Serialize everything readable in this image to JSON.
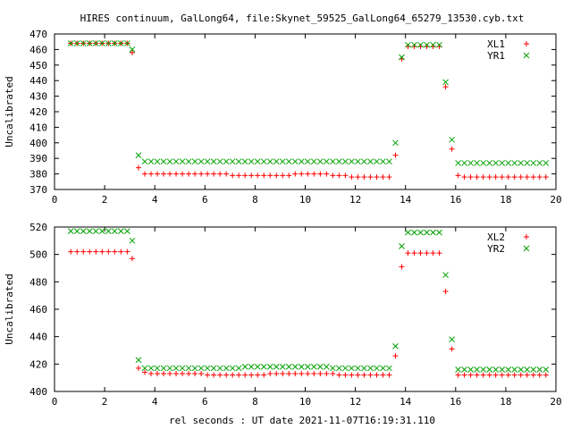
{
  "title": "HIRES continuum, GalLong64, file:Skynet_59525_GalLong64_65279_13530.cyb.txt",
  "xlabel": "rel seconds : UT date 2021-11-07T16:19:31.110",
  "chart_data": [
    {
      "type": "scatter",
      "ylabel": "Uncalibrated",
      "xlim": [
        0,
        20
      ],
      "ylim": [
        370,
        470
      ],
      "x_ticks": [
        0,
        2,
        4,
        6,
        8,
        10,
        12,
        14,
        16,
        18,
        20
      ],
      "y_ticks": [
        370,
        380,
        390,
        400,
        410,
        420,
        430,
        440,
        450,
        460,
        470
      ],
      "grid": false,
      "legend_position": "top-right",
      "x": [
        0.65,
        0.9,
        1.15,
        1.4,
        1.65,
        1.9,
        2.15,
        2.4,
        2.65,
        2.9,
        3.1,
        3.35,
        3.6,
        3.85,
        4.1,
        4.35,
        4.6,
        4.85,
        5.1,
        5.35,
        5.6,
        5.85,
        6.1,
        6.35,
        6.6,
        6.85,
        7.1,
        7.35,
        7.6,
        7.85,
        8.1,
        8.35,
        8.6,
        8.85,
        9.1,
        9.35,
        9.6,
        9.85,
        10.1,
        10.35,
        10.6,
        10.85,
        11.1,
        11.35,
        11.6,
        11.85,
        12.1,
        12.35,
        12.6,
        12.85,
        13.1,
        13.35,
        13.6,
        13.85,
        14.1,
        14.35,
        14.6,
        14.85,
        15.1,
        15.35,
        15.6,
        15.85,
        16.1,
        16.35,
        16.6,
        16.85,
        17.1,
        17.35,
        17.6,
        17.85,
        18.1,
        18.35,
        18.6,
        18.85,
        19.1,
        19.35,
        19.6
      ],
      "series": [
        {
          "name": "XL1",
          "color": "#ff0000",
          "marker": "plus",
          "values": [
            464,
            464,
            464,
            464,
            464,
            464,
            464,
            464,
            464,
            464,
            458,
            384,
            380,
            380,
            380,
            380,
            380,
            380,
            380,
            380,
            380,
            380,
            380,
            380,
            380,
            380,
            379,
            379,
            379,
            379,
            379,
            379,
            379,
            379,
            379,
            379,
            380,
            380,
            380,
            380,
            380,
            380,
            379,
            379,
            379,
            378,
            378,
            378,
            378,
            378,
            378,
            378,
            392,
            454,
            462,
            462,
            462,
            462,
            462,
            462,
            436,
            396,
            379,
            378,
            378,
            378,
            378,
            378,
            378,
            378,
            378,
            378,
            378,
            378,
            378,
            378,
            378
          ]
        },
        {
          "name": "YR1",
          "color": "#00a000",
          "marker": "cross",
          "values": [
            464,
            464,
            464,
            464,
            464,
            464,
            464,
            464,
            464,
            464,
            460,
            392,
            388,
            388,
            388,
            388,
            388,
            388,
            388,
            388,
            388,
            388,
            388,
            388,
            388,
            388,
            388,
            388,
            388,
            388,
            388,
            388,
            388,
            388,
            388,
            388,
            388,
            388,
            388,
            388,
            388,
            388,
            388,
            388,
            388,
            388,
            388,
            388,
            388,
            388,
            388,
            388,
            400,
            455,
            463,
            463,
            463,
            463,
            463,
            463,
            439,
            402,
            387,
            387,
            387,
            387,
            387,
            387,
            387,
            387,
            387,
            387,
            387,
            387,
            387,
            387,
            387
          ]
        }
      ]
    },
    {
      "type": "scatter",
      "ylabel": "Uncalibrated",
      "xlim": [
        0,
        20
      ],
      "ylim": [
        400,
        520
      ],
      "x_ticks": [
        0,
        2,
        4,
        6,
        8,
        10,
        12,
        14,
        16,
        18,
        20
      ],
      "y_ticks": [
        400,
        420,
        440,
        460,
        480,
        500,
        520
      ],
      "grid": false,
      "legend_position": "top-right",
      "x": [
        0.65,
        0.9,
        1.15,
        1.4,
        1.65,
        1.9,
        2.15,
        2.4,
        2.65,
        2.9,
        3.1,
        3.35,
        3.6,
        3.85,
        4.1,
        4.35,
        4.6,
        4.85,
        5.1,
        5.35,
        5.6,
        5.85,
        6.1,
        6.35,
        6.6,
        6.85,
        7.1,
        7.35,
        7.6,
        7.85,
        8.1,
        8.35,
        8.6,
        8.85,
        9.1,
        9.35,
        9.6,
        9.85,
        10.1,
        10.35,
        10.6,
        10.85,
        11.1,
        11.35,
        11.6,
        11.85,
        12.1,
        12.35,
        12.6,
        12.85,
        13.1,
        13.35,
        13.6,
        13.85,
        14.1,
        14.35,
        14.6,
        14.85,
        15.1,
        15.35,
        15.6,
        15.85,
        16.1,
        16.35,
        16.6,
        16.85,
        17.1,
        17.35,
        17.6,
        17.85,
        18.1,
        18.35,
        18.6,
        18.85,
        19.1,
        19.35,
        19.6
      ],
      "series": [
        {
          "name": "XL2",
          "color": "#ff0000",
          "marker": "plus",
          "values": [
            502,
            502,
            502,
            502,
            502,
            502,
            502,
            502,
            502,
            502,
            497,
            417,
            414,
            413,
            413,
            413,
            413,
            413,
            413,
            413,
            413,
            413,
            412,
            412,
            412,
            412,
            412,
            412,
            412,
            412,
            412,
            412,
            413,
            413,
            413,
            413,
            413,
            413,
            413,
            413,
            413,
            413,
            413,
            412,
            412,
            412,
            412,
            412,
            412,
            412,
            412,
            412,
            426,
            491,
            501,
            501,
            501,
            501,
            501,
            501,
            473,
            431,
            412,
            412,
            412,
            412,
            412,
            412,
            412,
            412,
            412,
            412,
            412,
            412,
            412,
            412,
            412
          ]
        },
        {
          "name": "YR2",
          "color": "#00a000",
          "marker": "cross",
          "values": [
            517,
            517,
            517,
            517,
            517,
            517,
            517,
            517,
            517,
            517,
            510,
            423,
            417,
            417,
            417,
            417,
            417,
            417,
            417,
            417,
            417,
            417,
            417,
            417,
            417,
            417,
            417,
            417,
            418,
            418,
            418,
            418,
            418,
            418,
            418,
            418,
            418,
            418,
            418,
            418,
            418,
            418,
            417,
            417,
            417,
            417,
            417,
            417,
            417,
            417,
            417,
            417,
            433,
            506,
            516,
            516,
            516,
            516,
            516,
            516,
            485,
            438,
            416,
            416,
            416,
            416,
            416,
            416,
            416,
            416,
            416,
            416,
            416,
            416,
            416,
            416,
            416
          ]
        }
      ]
    }
  ]
}
